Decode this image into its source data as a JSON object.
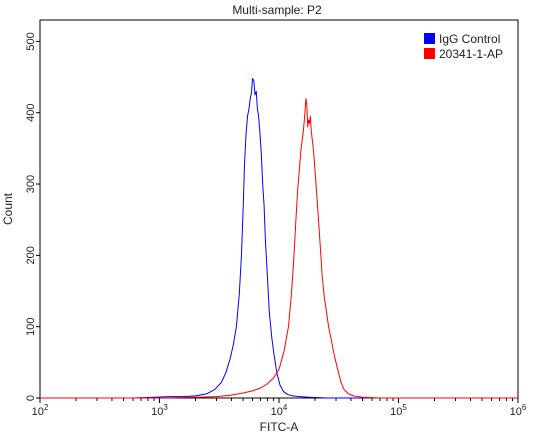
{
  "chart_data": {
    "type": "line",
    "title": "Multi-sample: P2",
    "xlabel": "FITC-A",
    "ylabel": "Count",
    "x_scale": "log",
    "xlim": [
      100,
      1000000
    ],
    "ylim": [
      0,
      530
    ],
    "x_ticks": [
      {
        "value": 100,
        "base": "10",
        "exp": "2"
      },
      {
        "value": 1000,
        "base": "10",
        "exp": "3"
      },
      {
        "value": 10000,
        "base": "10",
        "exp": "4"
      },
      {
        "value": 100000,
        "base": "10",
        "exp": "5"
      },
      {
        "value": 1000000,
        "base": "10",
        "exp": "6"
      }
    ],
    "y_ticks": [
      0,
      100,
      200,
      300,
      400,
      500
    ],
    "legend_position": "top-right",
    "series": [
      {
        "name": "IgG Control",
        "color": "#0000ff",
        "points": [
          [
            100,
            0
          ],
          [
            300,
            0
          ],
          [
            600,
            0
          ],
          [
            900,
            1
          ],
          [
            1200,
            2
          ],
          [
            1600,
            2
          ],
          [
            2000,
            3
          ],
          [
            2500,
            6
          ],
          [
            2900,
            12
          ],
          [
            3300,
            22
          ],
          [
            3600,
            36
          ],
          [
            3900,
            55
          ],
          [
            4150,
            75
          ],
          [
            4400,
            100
          ],
          [
            4650,
            145
          ],
          [
            4850,
            200
          ],
          [
            5000,
            260
          ],
          [
            5150,
            330
          ],
          [
            5300,
            370
          ],
          [
            5450,
            395
          ],
          [
            5600,
            405
          ],
          [
            5750,
            420
          ],
          [
            5900,
            430
          ],
          [
            6000,
            448
          ],
          [
            6150,
            445
          ],
          [
            6300,
            425
          ],
          [
            6450,
            430
          ],
          [
            6600,
            405
          ],
          [
            6750,
            395
          ],
          [
            6900,
            375
          ],
          [
            7100,
            345
          ],
          [
            7300,
            300
          ],
          [
            7500,
            270
          ],
          [
            7700,
            220
          ],
          [
            8000,
            170
          ],
          [
            8300,
            120
          ],
          [
            8700,
            85
          ],
          [
            9100,
            60
          ],
          [
            9600,
            35
          ],
          [
            10200,
            18
          ],
          [
            10900,
            9
          ],
          [
            11800,
            5
          ],
          [
            13000,
            3
          ],
          [
            15000,
            2
          ],
          [
            18000,
            1
          ],
          [
            25000,
            0
          ],
          [
            100000,
            0
          ],
          [
            1000000,
            0
          ]
        ]
      },
      {
        "name": "20341-1-AP",
        "color": "#ff0000",
        "points": [
          [
            100,
            0
          ],
          [
            1000,
            0
          ],
          [
            2000,
            1
          ],
          [
            3000,
            2
          ],
          [
            4000,
            4
          ],
          [
            5000,
            7
          ],
          [
            6000,
            10
          ],
          [
            7000,
            14
          ],
          [
            8000,
            20
          ],
          [
            9000,
            28
          ],
          [
            10000,
            40
          ],
          [
            11000,
            65
          ],
          [
            12000,
            100
          ],
          [
            12700,
            145
          ],
          [
            13300,
            195
          ],
          [
            13800,
            245
          ],
          [
            14300,
            290
          ],
          [
            14800,
            320
          ],
          [
            15200,
            345
          ],
          [
            15600,
            360
          ],
          [
            16000,
            375
          ],
          [
            16400,
            395
          ],
          [
            16800,
            420
          ],
          [
            17100,
            410
          ],
          [
            17400,
            380
          ],
          [
            17700,
            390
          ],
          [
            18000,
            385
          ],
          [
            18300,
            395
          ],
          [
            18600,
            375
          ],
          [
            18900,
            365
          ],
          [
            19200,
            355
          ],
          [
            19600,
            340
          ],
          [
            20000,
            320
          ],
          [
            20500,
            295
          ],
          [
            21000,
            270
          ],
          [
            21600,
            240
          ],
          [
            22300,
            205
          ],
          [
            23000,
            170
          ],
          [
            24000,
            140
          ],
          [
            25000,
            120
          ],
          [
            26000,
            100
          ],
          [
            27500,
            80
          ],
          [
            29000,
            60
          ],
          [
            31000,
            40
          ],
          [
            33000,
            22
          ],
          [
            35000,
            12
          ],
          [
            38000,
            6
          ],
          [
            42000,
            3
          ],
          [
            50000,
            1
          ],
          [
            70000,
            0
          ],
          [
            1000000,
            0
          ]
        ]
      }
    ]
  }
}
